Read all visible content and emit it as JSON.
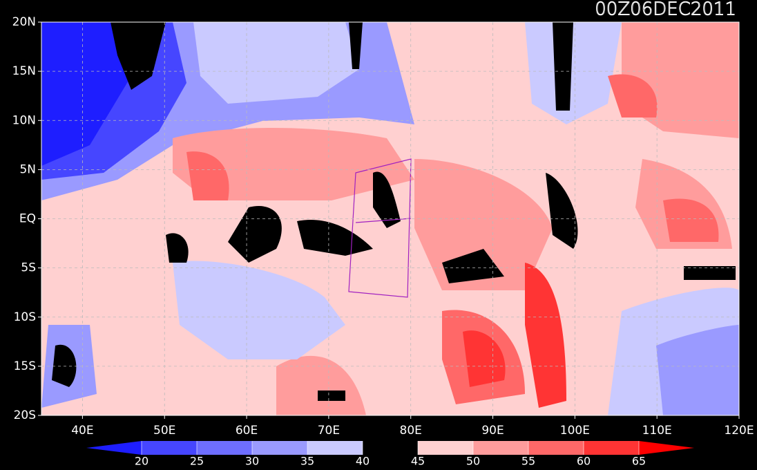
{
  "title": "00Z06DEC2011",
  "lat_ticks": [
    {
      "value": 20,
      "label": "20N"
    },
    {
      "value": 15,
      "label": "15N"
    },
    {
      "value": 10,
      "label": "10N"
    },
    {
      "value": 5,
      "label": "5N"
    },
    {
      "value": 0,
      "label": "EQ"
    },
    {
      "value": -5,
      "label": "5S"
    },
    {
      "value": -10,
      "label": "10S"
    },
    {
      "value": -15,
      "label": "15S"
    },
    {
      "value": -20,
      "label": "20S"
    }
  ],
  "lat_range": [
    -20,
    20
  ],
  "lon_ticks": [
    {
      "value": 40,
      "label": "40E"
    },
    {
      "value": 50,
      "label": "50E"
    },
    {
      "value": 60,
      "label": "60E"
    },
    {
      "value": 70,
      "label": "70E"
    },
    {
      "value": 80,
      "label": "80E"
    },
    {
      "value": 90,
      "label": "90E"
    },
    {
      "value": 100,
      "label": "100E"
    },
    {
      "value": 110,
      "label": "110E"
    },
    {
      "value": 120,
      "label": "120E"
    }
  ],
  "lon_range": [
    35,
    120
  ],
  "colorbar": {
    "levels": [
      20,
      25,
      30,
      35,
      40,
      45,
      50,
      55,
      60,
      65
    ],
    "colors": [
      "#1e1eff",
      "#4646ff",
      "#6e6eff",
      "#9a9aff",
      "#cacaff",
      "#000000",
      "#ffd0d0",
      "#ff9c9c",
      "#ff6868",
      "#ff3434",
      "#ff0000"
    ]
  }
}
